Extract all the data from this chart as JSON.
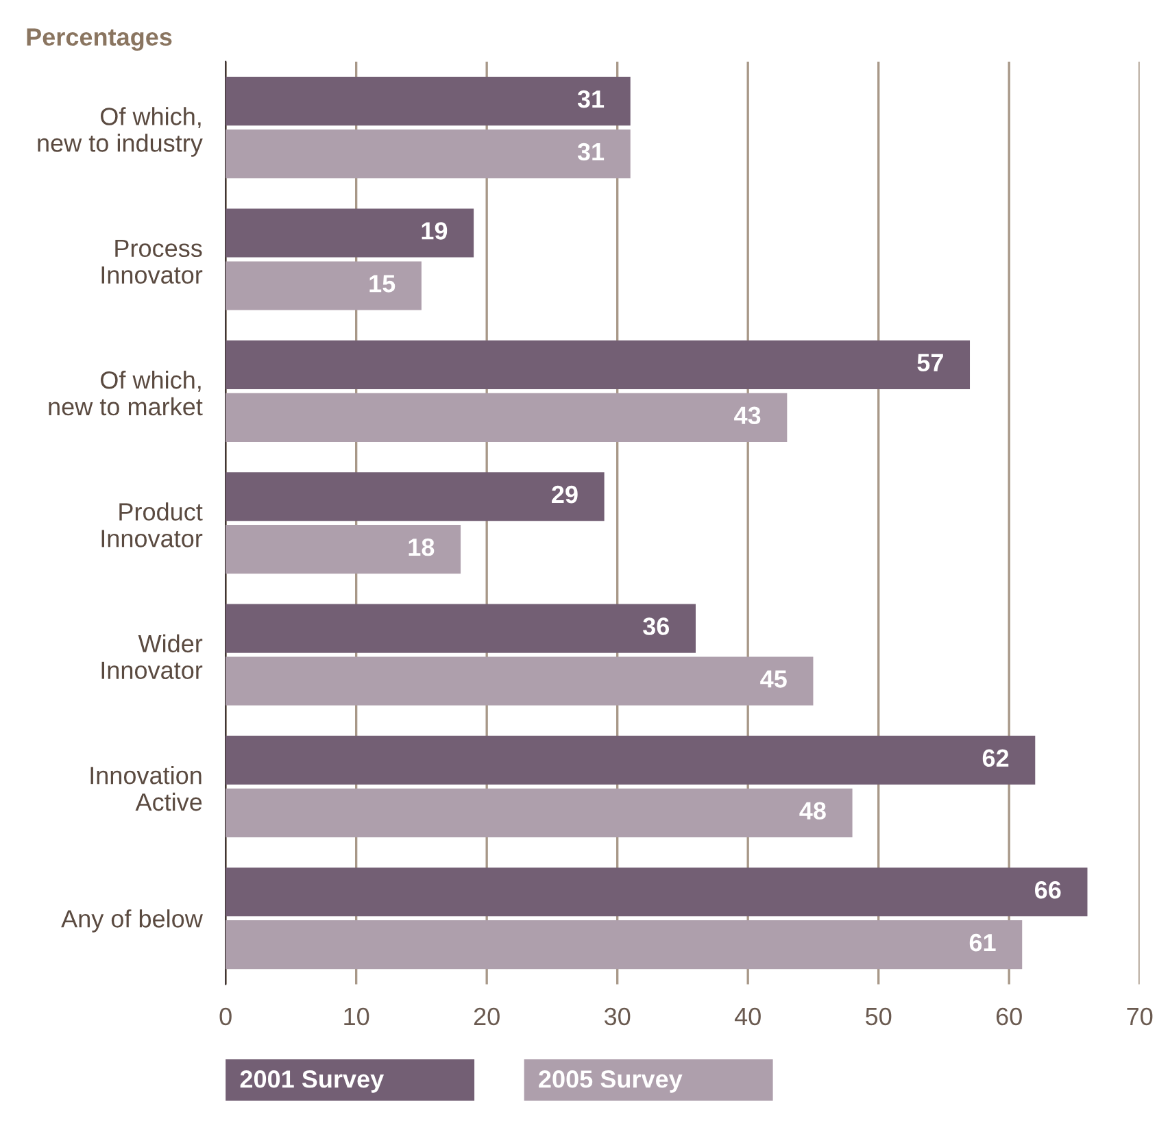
{
  "chart_data": {
    "type": "bar",
    "orientation": "horizontal",
    "title": "Percentages",
    "categories": [
      "Of which,\nnew to industry",
      "Process\nInnovator",
      "Of which,\nnew to market",
      "Product\nInnovator",
      "Wider\nInnovator",
      "Innovation\nActive",
      "Any of below"
    ],
    "series": [
      {
        "name": "2001 Survey",
        "color": "#735f74",
        "values": [
          31,
          19,
          57,
          29,
          36,
          62,
          66
        ]
      },
      {
        "name": "2005 Survey",
        "color": "#ae9fac",
        "values": [
          31,
          15,
          43,
          18,
          45,
          48,
          61
        ]
      }
    ],
    "xlim": [
      0,
      70
    ],
    "xticks": [
      0,
      10,
      20,
      30,
      40,
      50,
      60,
      70
    ],
    "grid": "x",
    "legend": "bottom",
    "data_labels": true
  }
}
